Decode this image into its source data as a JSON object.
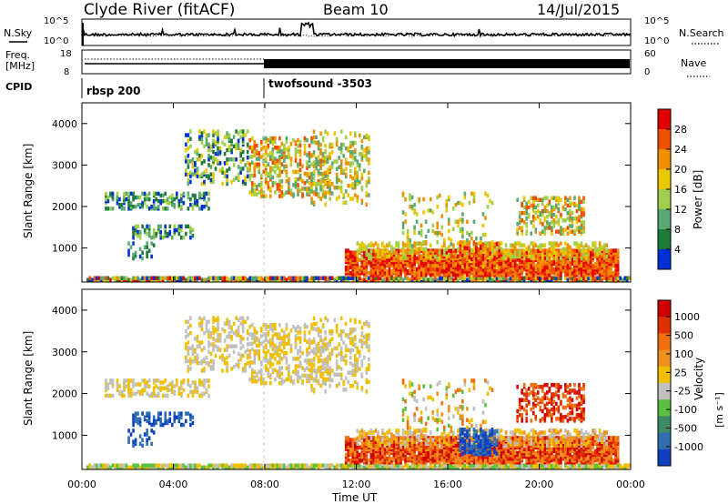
{
  "header": {
    "station": "Clyde River (fitACF)",
    "beam": "Beam 10",
    "date": "14/Jul/2015"
  },
  "noise_panel": {
    "left_label": "N.Sky",
    "right_label": "N.Search",
    "ticks_left": [
      "10^5",
      "10^0"
    ],
    "ticks_right": [
      "10^5",
      "10^0"
    ]
  },
  "freq_panel": {
    "left_label_1": "Freq.",
    "left_label_2": "[MHz]",
    "right_label": "Nave",
    "ticks_left": [
      "18",
      "8"
    ],
    "ticks_right": [
      "60",
      "0"
    ]
  },
  "cpid": {
    "label": "CPID",
    "segments": [
      {
        "name": "rbsp 200",
        "start_hour": 0
      },
      {
        "name": "twofsound -3503",
        "start_hour": 8
      }
    ]
  },
  "colors": {
    "power_scale": [
      "#0030d8",
      "#1c7a3a",
      "#5aa872",
      "#9fcf4c",
      "#e8c800",
      "#f09000",
      "#f05000",
      "#e00000"
    ],
    "velocity_scale": [
      "#1040c0",
      "#2f6fb0",
      "#3e8c66",
      "#5cc040",
      "#c0c0c0",
      "#f0c000",
      "#f09020",
      "#f07010",
      "#e03000",
      "#d00000"
    ]
  },
  "chart_data": [
    {
      "type": "heatmap",
      "title": "Power",
      "ylabel": "Slant Range [km]",
      "xlabel": "Time UT",
      "x_ticks": [
        "00:00",
        "04:00",
        "08:00",
        "12:00",
        "16:00",
        "20:00",
        "00:00"
      ],
      "y_ticks": [
        1000,
        2000,
        3000,
        4000
      ],
      "ylim": [
        180,
        4500
      ],
      "xlim_hours": [
        0,
        24
      ],
      "colorbar_label": "Power [dB]",
      "colorbar_ticks": [
        4,
        8,
        12,
        16,
        20,
        24,
        28
      ],
      "colorbar_range": [
        0,
        30
      ]
    },
    {
      "type": "heatmap",
      "title": "Velocity",
      "ylabel": "Slant Range [km]",
      "xlabel": "Time UT",
      "x_ticks": [
        "00:00",
        "04:00",
        "08:00",
        "12:00",
        "16:00",
        "20:00",
        "00:00"
      ],
      "y_ticks": [
        1000,
        2000,
        3000,
        4000
      ],
      "ylim": [
        180,
        4500
      ],
      "xlim_hours": [
        0,
        24
      ],
      "colorbar_label": "Velocity",
      "colorbar_unit": "[m s⁻¹]",
      "colorbar_ticks": [
        1000,
        500,
        100,
        25,
        -25,
        -100,
        -500,
        -1000
      ]
    }
  ],
  "xaxis_label": "Time UT"
}
